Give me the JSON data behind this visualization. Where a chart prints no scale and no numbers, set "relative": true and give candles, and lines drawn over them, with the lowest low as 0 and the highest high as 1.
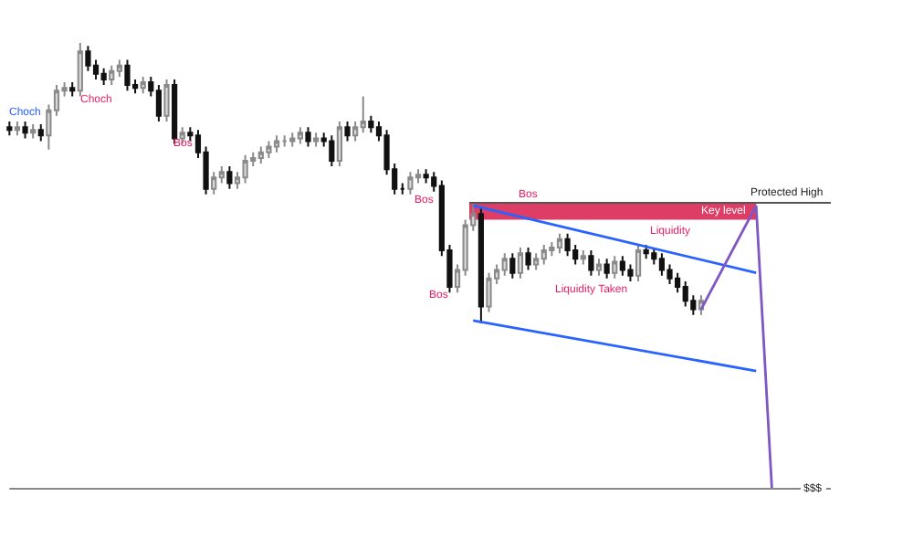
{
  "chart_data": {
    "type": "candlestick",
    "relative": true,
    "categories": [
      null,
      null,
      null,
      null,
      null,
      null,
      null,
      null,
      null,
      null,
      null,
      null,
      null,
      null,
      null,
      null,
      null,
      null,
      null,
      null,
      null,
      null,
      null,
      null,
      null,
      null,
      null,
      null,
      null,
      null,
      null,
      null,
      null,
      null,
      null,
      null,
      null,
      null,
      null,
      null,
      null,
      null,
      null,
      null,
      null,
      null,
      null,
      null,
      null,
      null,
      null,
      null,
      null,
      null,
      null,
      null,
      null,
      null,
      null,
      null,
      null,
      null,
      null,
      null,
      null,
      null,
      null,
      null,
      null,
      null,
      null,
      null,
      null,
      null,
      null,
      null,
      null,
      null,
      null,
      null,
      null,
      null,
      null,
      null,
      null,
      null,
      null,
      null,
      null,
      null,
      null,
      null,
      null,
      null,
      null,
      null,
      null,
      null,
      null,
      null,
      null,
      null,
      null,
      null,
      null
    ],
    "ohlc": [
      [
        0.7,
        0.72,
        0.67,
        0.69
      ],
      [
        0.69,
        0.72,
        0.67,
        0.7
      ],
      [
        0.7,
        0.72,
        0.66,
        0.68
      ],
      [
        0.68,
        0.71,
        0.66,
        0.69
      ],
      [
        0.69,
        0.71,
        0.65,
        0.67
      ],
      [
        0.67,
        0.78,
        0.62,
        0.76
      ],
      [
        0.76,
        0.85,
        0.74,
        0.83
      ],
      [
        0.83,
        0.86,
        0.81,
        0.84
      ],
      [
        0.84,
        0.86,
        0.81,
        0.83
      ],
      [
        0.83,
        1.0,
        0.81,
        0.97
      ],
      [
        0.97,
        0.99,
        0.9,
        0.92
      ],
      [
        0.92,
        0.94,
        0.87,
        0.89
      ],
      [
        0.89,
        0.91,
        0.85,
        0.87
      ],
      [
        0.87,
        0.92,
        0.85,
        0.9
      ],
      [
        0.9,
        0.94,
        0.88,
        0.92
      ],
      [
        0.92,
        0.94,
        0.83,
        0.85
      ],
      [
        0.85,
        0.87,
        0.82,
        0.84
      ],
      [
        0.84,
        0.88,
        0.82,
        0.86
      ],
      [
        0.86,
        0.88,
        0.81,
        0.83
      ],
      [
        0.83,
        0.85,
        0.72,
        0.74
      ],
      [
        0.74,
        0.87,
        0.72,
        0.85
      ],
      [
        0.85,
        0.87,
        0.64,
        0.66
      ],
      [
        0.66,
        0.7,
        0.64,
        0.68
      ],
      [
        0.68,
        0.7,
        0.65,
        0.67
      ],
      [
        0.67,
        0.69,
        0.59,
        0.61
      ],
      [
        0.61,
        0.63,
        0.46,
        0.48
      ],
      [
        0.48,
        0.54,
        0.46,
        0.52
      ],
      [
        0.52,
        0.56,
        0.5,
        0.54
      ],
      [
        0.54,
        0.56,
        0.48,
        0.5
      ],
      [
        0.5,
        0.54,
        0.48,
        0.52
      ],
      [
        0.52,
        0.6,
        0.5,
        0.58
      ],
      [
        0.58,
        0.61,
        0.56,
        0.59
      ],
      [
        0.59,
        0.63,
        0.57,
        0.61
      ],
      [
        0.61,
        0.65,
        0.59,
        0.63
      ],
      [
        0.63,
        0.67,
        0.61,
        0.65
      ],
      [
        0.65,
        0.67,
        0.63,
        0.65
      ],
      [
        0.65,
        0.68,
        0.63,
        0.66
      ],
      [
        0.66,
        0.7,
        0.64,
        0.68
      ],
      [
        0.68,
        0.7,
        0.63,
        0.65
      ],
      [
        0.65,
        0.68,
        0.63,
        0.66
      ],
      [
        0.66,
        0.68,
        0.63,
        0.65
      ],
      [
        0.65,
        0.67,
        0.56,
        0.58
      ],
      [
        0.58,
        0.72,
        0.56,
        0.7
      ],
      [
        0.7,
        0.72,
        0.65,
        0.67
      ],
      [
        0.67,
        0.72,
        0.65,
        0.7
      ],
      [
        0.7,
        0.81,
        0.68,
        0.72
      ],
      [
        0.72,
        0.74,
        0.68,
        0.7
      ],
      [
        0.7,
        0.72,
        0.65,
        0.67
      ],
      [
        0.67,
        0.69,
        0.53,
        0.55
      ],
      [
        0.55,
        0.57,
        0.46,
        0.48
      ],
      [
        0.48,
        0.5,
        0.46,
        0.48
      ],
      [
        0.48,
        0.54,
        0.46,
        0.52
      ],
      [
        0.52,
        0.55,
        0.5,
        0.53
      ],
      [
        0.53,
        0.55,
        0.5,
        0.52
      ],
      [
        0.52,
        0.54,
        0.47,
        0.49
      ],
      [
        0.49,
        0.51,
        0.24,
        0.26
      ],
      [
        0.26,
        0.28,
        0.11,
        0.13
      ],
      [
        0.13,
        0.21,
        0.11,
        0.19
      ],
      [
        0.19,
        0.37,
        0.17,
        0.35
      ],
      [
        0.35,
        0.43,
        0.33,
        0.39
      ],
      [
        0.39,
        0.41,
        0.0,
        0.06
      ],
      [
        0.06,
        0.18,
        0.04,
        0.16
      ],
      [
        0.16,
        0.21,
        0.14,
        0.19
      ],
      [
        0.19,
        0.25,
        0.17,
        0.23
      ],
      [
        0.23,
        0.25,
        0.16,
        0.18
      ],
      [
        0.18,
        0.27,
        0.16,
        0.25
      ],
      [
        0.25,
        0.27,
        0.19,
        0.21
      ],
      [
        0.21,
        0.25,
        0.19,
        0.23
      ],
      [
        0.23,
        0.28,
        0.21,
        0.26
      ],
      [
        0.26,
        0.29,
        0.24,
        0.27
      ],
      [
        0.27,
        0.32,
        0.25,
        0.3
      ],
      [
        0.3,
        0.32,
        0.24,
        0.26
      ],
      [
        0.26,
        0.28,
        0.21,
        0.23
      ],
      [
        0.23,
        0.26,
        0.21,
        0.24
      ],
      [
        0.24,
        0.26,
        0.17,
        0.19
      ],
      [
        0.19,
        0.23,
        0.17,
        0.21
      ],
      [
        0.21,
        0.23,
        0.16,
        0.18
      ],
      [
        0.18,
        0.24,
        0.16,
        0.22
      ],
      [
        0.22,
        0.24,
        0.17,
        0.19
      ],
      [
        0.19,
        0.21,
        0.15,
        0.17
      ],
      [
        0.17,
        0.28,
        0.15,
        0.26
      ],
      [
        0.26,
        0.28,
        0.23,
        0.25
      ],
      [
        0.25,
        0.27,
        0.21,
        0.23
      ],
      [
        0.23,
        0.25,
        0.17,
        0.19
      ],
      [
        0.19,
        0.21,
        0.14,
        0.16
      ],
      [
        0.16,
        0.18,
        0.11,
        0.13
      ],
      [
        0.13,
        0.15,
        0.06,
        0.08
      ],
      [
        0.08,
        0.1,
        0.03,
        0.05
      ],
      [
        0.05,
        0.1,
        0.03,
        0.08
      ],
      null,
      null,
      null,
      null,
      null,
      null,
      null,
      null,
      null,
      null,
      null,
      null,
      null,
      null,
      null,
      null
    ],
    "series": [
      {
        "type": "line",
        "color": "#2962ff",
        "values": [
          null,
          null,
          null,
          null,
          null,
          null,
          null,
          null,
          null,
          null,
          null,
          null,
          null,
          null,
          null,
          null,
          null,
          null,
          null,
          null,
          null,
          null,
          null,
          null,
          null,
          null,
          null,
          null,
          null,
          null,
          null,
          null,
          null,
          null,
          null,
          null,
          null,
          null,
          null,
          null,
          null,
          null,
          null,
          null,
          null,
          null,
          null,
          null,
          null,
          null,
          null,
          null,
          null,
          null,
          null,
          null,
          null,
          null,
          null,
          0.42,
          null,
          null,
          null,
          null,
          null,
          null,
          null,
          null,
          null,
          null,
          null,
          null,
          null,
          null,
          null,
          null,
          null,
          null,
          null,
          null,
          null,
          null,
          null,
          null,
          null,
          null,
          null,
          null,
          null,
          null,
          null,
          null,
          null,
          null,
          null,
          0.18,
          null,
          null,
          null,
          null,
          null,
          null,
          null,
          null,
          null
        ]
      },
      {
        "type": "line",
        "color": "#2962ff",
        "values": [
          null,
          null,
          null,
          null,
          null,
          null,
          null,
          null,
          null,
          null,
          null,
          null,
          null,
          null,
          null,
          null,
          null,
          null,
          null,
          null,
          null,
          null,
          null,
          null,
          null,
          null,
          null,
          null,
          null,
          null,
          null,
          null,
          null,
          null,
          null,
          null,
          null,
          null,
          null,
          null,
          null,
          null,
          null,
          null,
          null,
          null,
          null,
          null,
          null,
          null,
          null,
          null,
          null,
          null,
          null,
          null,
          null,
          null,
          null,
          0.01,
          null,
          null,
          null,
          null,
          null,
          null,
          null,
          null,
          null,
          null,
          null,
          null,
          null,
          null,
          null,
          null,
          null,
          null,
          null,
          null,
          null,
          null,
          null,
          null,
          null,
          null,
          null,
          null,
          null,
          null,
          null,
          null,
          null,
          null,
          null,
          -0.17,
          null,
          null,
          null,
          null,
          null,
          null,
          null,
          null,
          null
        ]
      },
      {
        "type": "line",
        "color": "#7e57c2",
        "values": [
          null,
          null,
          null,
          null,
          null,
          null,
          null,
          null,
          null,
          null,
          null,
          null,
          null,
          null,
          null,
          null,
          null,
          null,
          null,
          null,
          null,
          null,
          null,
          null,
          null,
          null,
          null,
          null,
          null,
          null,
          null,
          null,
          null,
          null,
          null,
          null,
          null,
          null,
          null,
          null,
          null,
          null,
          null,
          null,
          null,
          null,
          null,
          null,
          null,
          null,
          null,
          null,
          null,
          null,
          null,
          null,
          null,
          null,
          null,
          null,
          null,
          null,
          null,
          null,
          null,
          null,
          null,
          null,
          null,
          null,
          null,
          null,
          null,
          null,
          null,
          null,
          null,
          null,
          null,
          null,
          null,
          null,
          null,
          null,
          null,
          null,
          null,
          null,
          0.05,
          null,
          null,
          null,
          null,
          null,
          null,
          0.42,
          null,
          -0.59,
          null,
          null,
          null,
          null,
          null,
          null,
          null
        ]
      }
    ],
    "bands": [
      {
        "axis": "y",
        "from": 0.37,
        "to": 0.43,
        "label": "Key level",
        "color": "#d81b4a"
      }
    ],
    "ref_lines": [
      {
        "axis": "y",
        "value": 0.43,
        "label": "Protected High",
        "color": "#555555"
      },
      {
        "axis": "y",
        "value": -0.59,
        "label": "$$$",
        "color": "#888888"
      }
    ],
    "annotations": [
      "Choch",
      "Choch",
      "Bos",
      "Bos",
      "Bos",
      "Bos",
      "Liquidity",
      "Liquidity Taken"
    ]
  }
}
